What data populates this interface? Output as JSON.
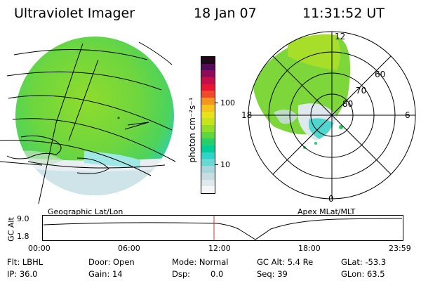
{
  "header": {
    "title": "Ultraviolet Imager",
    "date": "18 Jan 07",
    "time": "11:31:52 UT"
  },
  "colorbar": {
    "axis_label": "photon cm⁻²s⁻¹",
    "ticks": [
      "100",
      "10"
    ],
    "colors": [
      "#f4f6f8",
      "#dfe8ec",
      "#c7dde2",
      "#a9d6dc",
      "#66d9d5",
      "#2fd4c8",
      "#00cf9a",
      "#25d06a",
      "#5fd53e",
      "#93dd2a",
      "#c6e31c",
      "#e8e21a",
      "#f4c41a",
      "#f4961e",
      "#f04a28",
      "#e81533",
      "#c4104a",
      "#8e0c5a",
      "#550a5a",
      "#200818"
    ]
  },
  "polar_plot": {
    "mlt_labels": {
      "top": "12",
      "bottom": "0",
      "left": "18",
      "right": "6"
    },
    "lat_labels": [
      "60",
      "70",
      "80"
    ]
  },
  "panels": {
    "left_caption": "Geographic Lat/Lon",
    "right_caption": "Apex MLat/MLT"
  },
  "timeline": {
    "ylabel": "GC Alt",
    "yticks": [
      "9.0",
      "1.8"
    ],
    "xticks": [
      "00:00",
      "06:00",
      "12:00",
      "18:00",
      "23:59"
    ],
    "marker_time": "11:31:52"
  },
  "info": {
    "filter": "Flt: LBHL",
    "ip": "IP: 36.0",
    "door": "Door: Open",
    "gain": "Gain: 14",
    "mode": "Mode: Normal",
    "dsp_label": "Dsp:",
    "dsp_value": "0.0",
    "gc_alt": "GC Alt: 5.4 Re",
    "seq": "Seq: 39",
    "glat": "GLat: -53.3",
    "glon": "GLon: 63.5"
  }
}
